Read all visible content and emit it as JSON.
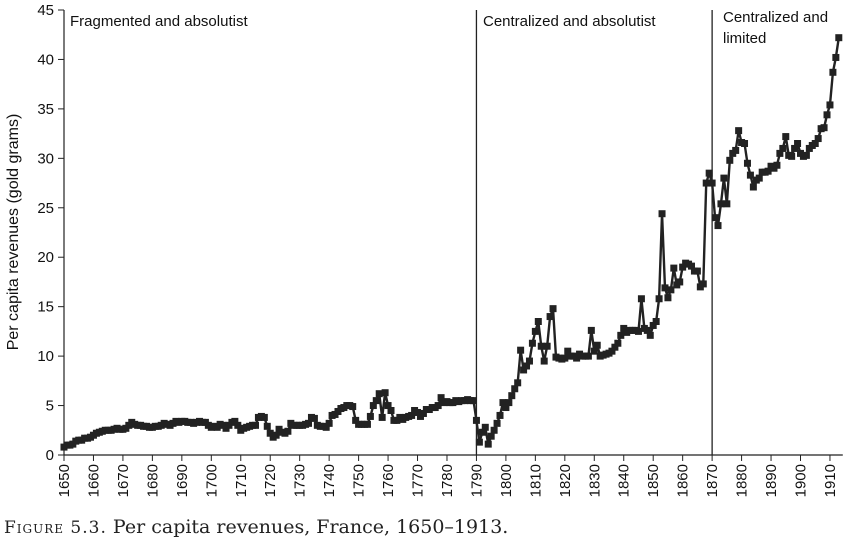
{
  "chart_data": {
    "type": "line",
    "title": "",
    "xlabel": "",
    "ylabel": "Per capita revenues (gold grams)",
    "xlim": [
      1650,
      1913
    ],
    "ylim": [
      0,
      45
    ],
    "yticks": [
      0,
      5,
      10,
      15,
      20,
      25,
      30,
      35,
      40,
      45
    ],
    "xticks": [
      1650,
      1660,
      1670,
      1680,
      1690,
      1700,
      1710,
      1720,
      1730,
      1740,
      1750,
      1760,
      1770,
      1780,
      1790,
      1800,
      1810,
      1820,
      1830,
      1840,
      1850,
      1860,
      1870,
      1880,
      1890,
      1900,
      1910
    ],
    "grid": false,
    "marker": "square",
    "color": "#222222",
    "x_start": 1650,
    "values": [
      0.8,
      1.0,
      1.0,
      1.1,
      1.4,
      1.5,
      1.5,
      1.7,
      1.7,
      1.8,
      2.0,
      2.2,
      2.3,
      2.4,
      2.5,
      2.5,
      2.5,
      2.6,
      2.7,
      2.6,
      2.6,
      2.7,
      3.0,
      3.3,
      3.1,
      3.0,
      3.0,
      2.9,
      2.9,
      2.8,
      2.8,
      2.9,
      2.9,
      3.0,
      3.2,
      3.1,
      3.0,
      3.2,
      3.4,
      3.3,
      3.4,
      3.4,
      3.3,
      3.3,
      3.2,
      3.3,
      3.4,
      3.3,
      3.3,
      3.0,
      2.8,
      2.9,
      2.8,
      3.1,
      3.0,
      2.7,
      3.0,
      3.3,
      3.4,
      3.0,
      2.5,
      2.7,
      2.8,
      2.9,
      3.0,
      3.0,
      3.8,
      3.9,
      3.8,
      2.9,
      2.2,
      1.8,
      2.0,
      2.6,
      2.3,
      2.2,
      2.4,
      3.2,
      3.0,
      3.0,
      3.0,
      3.0,
      3.1,
      3.2,
      3.8,
      3.7,
      3.0,
      2.9,
      2.9,
      2.8,
      3.2,
      4.0,
      4.1,
      4.4,
      4.7,
      4.8,
      5.0,
      5.0,
      4.9,
      3.5,
      3.1,
      3.1,
      3.1,
      3.1,
      3.9,
      5.0,
      5.5,
      6.2,
      3.8,
      6.3,
      5.0,
      4.5,
      3.5,
      3.5,
      3.8,
      3.6,
      3.8,
      3.9,
      4.0,
      4.5,
      4.3,
      3.9,
      4.2,
      4.6,
      4.6,
      4.8,
      4.8,
      5.0,
      5.8,
      5.3,
      5.4,
      5.3,
      5.3,
      5.5,
      5.4,
      5.5,
      5.5,
      5.6,
      5.5,
      5.5,
      3.5,
      1.3,
      2.3,
      2.8,
      1.1,
      1.9,
      2.5,
      3.2,
      4.0,
      5.3,
      4.8,
      5.3,
      6.0,
      6.7,
      7.3,
      10.6,
      8.6,
      9.0,
      9.5,
      11.3,
      12.5,
      13.5,
      11.0,
      9.5,
      11.0,
      14.0,
      14.8,
      9.9,
      9.8,
      9.7,
      9.8,
      10.5,
      10.0,
      10.0,
      9.8,
      10.2,
      10.0,
      10.0,
      10.0,
      12.6,
      10.5,
      11.1,
      10.0,
      10.1,
      10.2,
      10.3,
      10.5,
      10.9,
      11.3,
      12.1,
      12.8,
      12.4,
      12.6,
      12.6,
      12.6,
      12.5,
      15.8,
      12.8,
      12.6,
      12.1,
      13.1,
      13.5,
      15.8,
      24.4,
      16.9,
      15.9,
      16.7,
      18.9,
      17.2,
      17.5,
      19.0,
      19.4,
      19.3,
      19.1,
      18.6,
      18.6,
      17.0,
      17.3,
      27.5,
      28.5,
      27.5,
      24.0,
      23.2,
      25.4,
      28.0,
      25.4,
      29.8,
      30.5,
      30.8,
      32.8,
      31.6,
      31.5,
      29.5,
      28.3,
      27.1,
      27.8,
      28.0,
      28.6,
      28.6,
      28.7,
      29.2,
      29.0,
      29.3,
      30.5,
      31.0,
      32.2,
      30.3,
      30.2,
      31.0,
      31.5,
      30.5,
      30.2,
      30.3,
      31.0,
      31.3,
      31.5,
      32.0,
      33.0,
      33.1,
      34.4,
      35.4,
      38.7,
      40.2,
      42.2
    ],
    "dividers": [
      {
        "year": 1790,
        "label": ""
      },
      {
        "year": 1870,
        "label": ""
      }
    ],
    "regions": [
      {
        "line1": "Fragmented and absolutist",
        "line2": ""
      },
      {
        "line1": "Centralized and absolutist",
        "line2": ""
      },
      {
        "line1": "Centralized and",
        "line2": "limited"
      }
    ]
  },
  "caption": {
    "label": "Figure 5.3.",
    "text": "Per capita revenues, France, 1650–1913."
  }
}
